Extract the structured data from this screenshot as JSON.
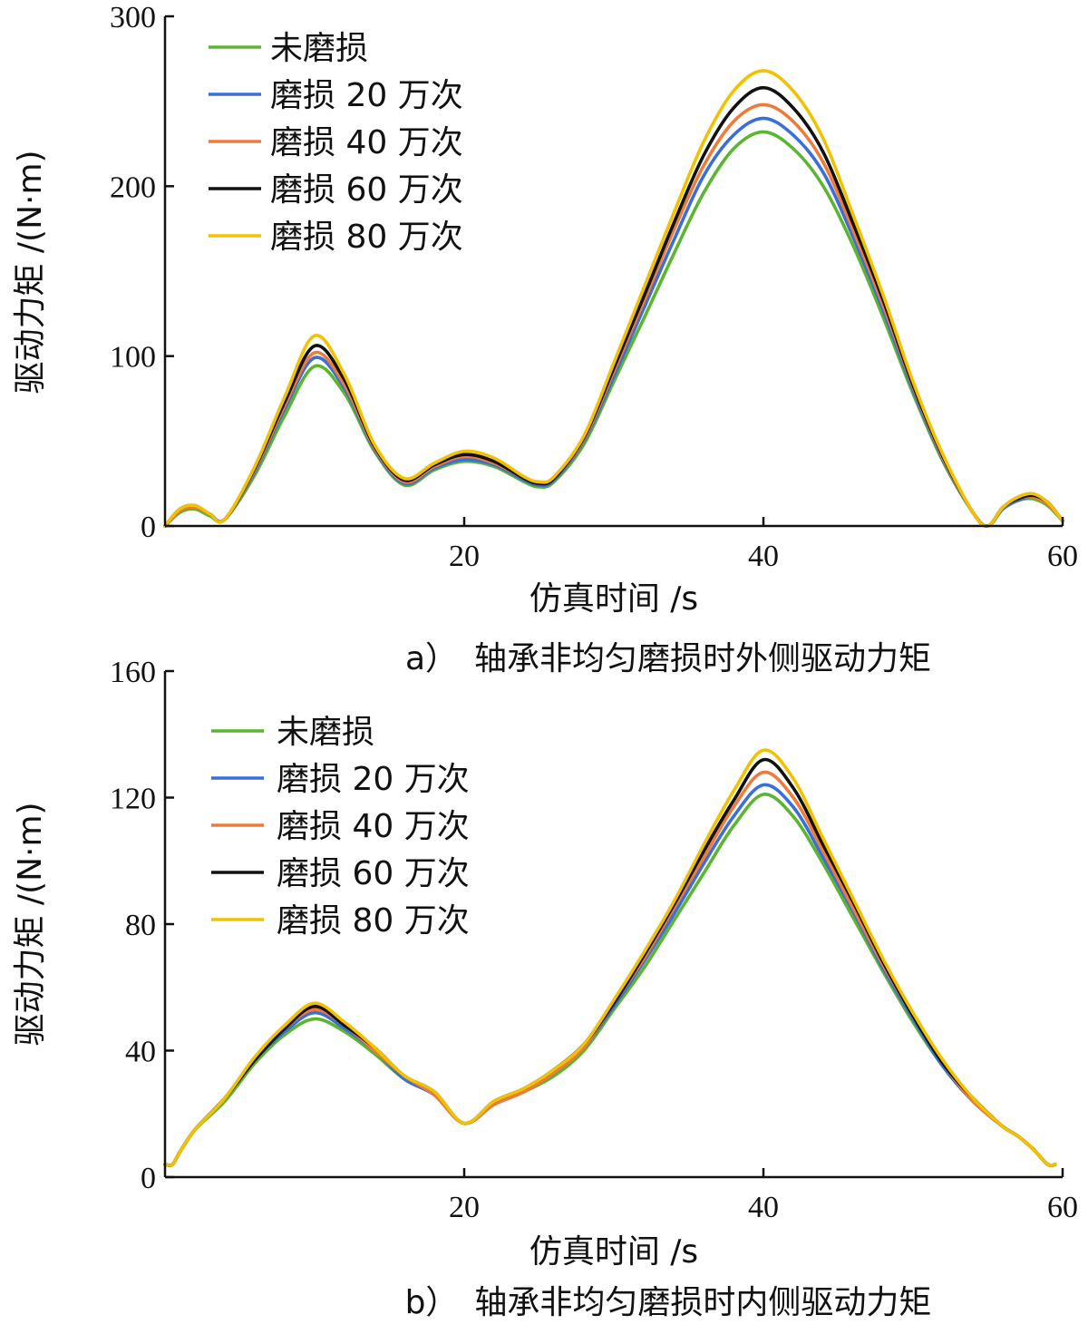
{
  "chart_data": [
    {
      "type": "line",
      "caption": "a）　轴承非均匀磨损时外侧驱动力矩",
      "xlabel": "仿真时间 /s",
      "ylabel": "驱动力矩 /(N·m)",
      "xlim": [
        0,
        60
      ],
      "ylim": [
        0,
        300
      ],
      "xticks": [
        20,
        40,
        60
      ],
      "yticks": [
        0,
        100,
        200,
        300
      ],
      "grid": false,
      "legend_position": "top-left",
      "x": [
        0,
        1,
        2,
        3,
        4,
        6,
        8,
        10,
        12,
        14,
        16,
        18,
        20,
        22,
        24,
        25,
        26,
        28,
        30,
        32,
        34,
        36,
        38,
        40,
        42,
        44,
        46,
        48,
        50,
        52,
        54,
        55,
        56,
        57,
        58,
        59,
        60
      ],
      "series": [
        {
          "name": "未磨损",
          "color": "#5cb531",
          "values": [
            0,
            8,
            10,
            6,
            4,
            30,
            65,
            94,
            78,
            44,
            24,
            33,
            38,
            35,
            26,
            23,
            26,
            48,
            85,
            122,
            160,
            196,
            222,
            232,
            222,
            200,
            165,
            123,
            78,
            38,
            8,
            0,
            10,
            15,
            16,
            12,
            3
          ]
        },
        {
          "name": "磨损 20 万次",
          "color": "#3a6fd8",
          "values": [
            0,
            9,
            11,
            7,
            4,
            32,
            69,
            99,
            81,
            45,
            25,
            34,
            39,
            36,
            27,
            24,
            27,
            50,
            88,
            128,
            168,
            206,
            230,
            240,
            230,
            208,
            170,
            127,
            80,
            39,
            8,
            0,
            10,
            15,
            17,
            13,
            3
          ]
        },
        {
          "name": "磨损 40 万次",
          "color": "#f07a3c",
          "values": [
            0,
            9,
            11,
            7,
            4,
            33,
            71,
            102,
            83,
            46,
            26,
            35,
            41,
            37,
            28,
            25,
            28,
            51,
            91,
            132,
            174,
            212,
            238,
            248,
            238,
            214,
            174,
            130,
            82,
            40,
            8,
            0,
            11,
            16,
            17,
            13,
            3
          ]
        },
        {
          "name": "磨损 60 万次",
          "color": "#111111",
          "values": [
            0,
            10,
            12,
            7,
            4,
            34,
            73,
            106,
            86,
            47,
            27,
            36,
            42,
            38,
            28,
            25,
            28,
            52,
            93,
            135,
            178,
            218,
            246,
            258,
            246,
            220,
            178,
            133,
            83,
            41,
            8,
            0,
            11,
            16,
            18,
            14,
            3
          ]
        },
        {
          "name": "磨损 80 万次",
          "color": "#f2c200",
          "values": [
            0,
            10,
            12,
            7,
            4,
            35,
            76,
            112,
            89,
            48,
            28,
            37,
            44,
            40,
            29,
            26,
            29,
            53,
            96,
            140,
            184,
            226,
            256,
            268,
            256,
            228,
            183,
            136,
            85,
            42,
            8,
            0,
            11,
            17,
            19,
            14,
            3
          ]
        }
      ]
    },
    {
      "type": "line",
      "caption": "b）　轴承非均匀磨损时内侧驱动力矩",
      "xlabel": "仿真时间 /s",
      "ylabel": "驱动力矩 /(N·m)",
      "xlim": [
        0,
        60
      ],
      "ylim": [
        0,
        160
      ],
      "xticks": [
        20,
        40,
        60
      ],
      "yticks": [
        0,
        40,
        80,
        120,
        160
      ],
      "grid": false,
      "legend_position": "top-left",
      "x": [
        0,
        0.5,
        1,
        2,
        4,
        6,
        8,
        10,
        12,
        14,
        16,
        18,
        20,
        22,
        24,
        26,
        28,
        30,
        32,
        34,
        36,
        38,
        40,
        42,
        44,
        46,
        48,
        50,
        52,
        54,
        56,
        57,
        58,
        59,
        59.5
      ],
      "series": [
        {
          "name": "未磨损",
          "color": "#5cb531",
          "values": [
            4,
            4,
            8,
            15,
            24,
            36,
            45,
            50,
            46,
            39,
            31,
            26,
            17,
            23,
            27,
            32,
            40,
            53,
            66,
            81,
            96,
            111,
            121,
            114,
            99,
            82,
            65,
            49,
            35,
            24,
            16,
            13,
            9,
            4,
            4
          ]
        },
        {
          "name": "磨损 20 万次",
          "color": "#3a6fd8",
          "values": [
            4,
            4,
            8,
            15,
            25,
            37,
            46,
            52,
            47,
            40,
            31,
            26,
            17,
            23,
            27,
            33,
            41,
            54,
            68,
            83,
            99,
            114,
            124,
            117,
            101,
            84,
            66,
            50,
            35,
            24,
            16,
            13,
            9,
            4,
            4
          ]
        },
        {
          "name": "磨损 40 万次",
          "color": "#f07a3c",
          "values": [
            4,
            4,
            8,
            15,
            25,
            37,
            47,
            53,
            48,
            40,
            32,
            26,
            17,
            23,
            27,
            33,
            41,
            55,
            69,
            85,
            101,
            117,
            128,
            120,
            103,
            85,
            67,
            51,
            36,
            24,
            16,
            13,
            9,
            4,
            4
          ]
        },
        {
          "name": "磨损 60 万次",
          "color": "#111111",
          "values": [
            4,
            4,
            8,
            15,
            25,
            37,
            47,
            54,
            48,
            41,
            32,
            27,
            17,
            24,
            28,
            34,
            42,
            55,
            70,
            86,
            103,
            119,
            132,
            123,
            105,
            87,
            68,
            51,
            36,
            25,
            16,
            13,
            9,
            4,
            4
          ]
        },
        {
          "name": "磨损 80 万次",
          "color": "#f2c200",
          "values": [
            4,
            4,
            8,
            15,
            25,
            38,
            48,
            55,
            49,
            41,
            32,
            27,
            17,
            24,
            28,
            34,
            42,
            56,
            71,
            87,
            105,
            122,
            135,
            126,
            107,
            88,
            69,
            52,
            37,
            25,
            16,
            13,
            9,
            4,
            4
          ]
        }
      ]
    }
  ]
}
